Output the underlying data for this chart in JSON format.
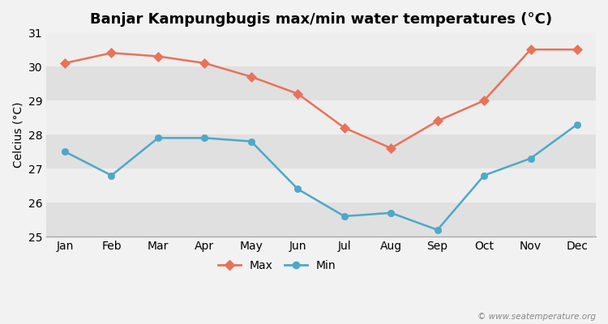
{
  "title": "Banjar Kampungbugis max/min water temperatures (°C)",
  "ylabel": "Celcius (°C)",
  "months": [
    "Jan",
    "Feb",
    "Mar",
    "Apr",
    "May",
    "Jun",
    "Jul",
    "Aug",
    "Sep",
    "Oct",
    "Nov",
    "Dec"
  ],
  "max_values": [
    30.1,
    30.4,
    30.3,
    30.1,
    29.7,
    29.2,
    28.2,
    27.6,
    28.4,
    29.0,
    30.5,
    30.5
  ],
  "min_values": [
    27.5,
    26.8,
    27.9,
    27.9,
    27.8,
    26.4,
    25.6,
    25.7,
    25.2,
    26.8,
    27.3,
    28.3
  ],
  "max_color": "#e8725a",
  "min_color": "#4ea8c8",
  "bg_color": "#f2f2f2",
  "band_light": "#eeeeee",
  "band_dark": "#e0e0e0",
  "ylim": [
    25,
    31
  ],
  "yticks": [
    25,
    26,
    27,
    28,
    29,
    30,
    31
  ],
  "watermark": "© www.seatemperature.org",
  "legend_max": "Max",
  "legend_min": "Min",
  "title_fontsize": 13,
  "axis_fontsize": 10,
  "watermark_fontsize": 7.5
}
